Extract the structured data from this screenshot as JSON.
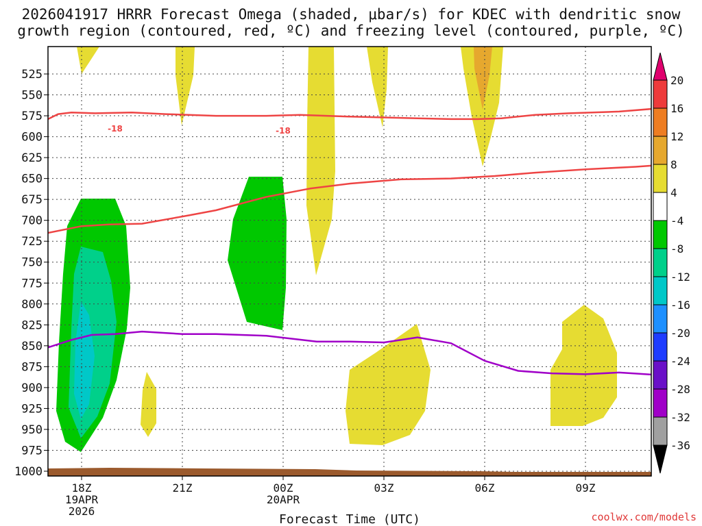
{
  "chart_data": {
    "type": "heatmap",
    "title_line1": "2026041917 HRRR Forecast Omega (shaded, μbar/s) for KDEC with dendritic snow",
    "title_line2": "growth region (contoured, red, ºC) and freezing level (contoured, purple, ºC)",
    "xlabel": "Forecast Time (UTC)",
    "credit": "coolwx.com/models",
    "x_range_hours": [
      -1,
      17.2
    ],
    "x_ticks": [
      {
        "hour": 0,
        "lines": [
          "18Z",
          "19APR",
          "2026"
        ]
      },
      {
        "hour": 3,
        "lines": [
          "21Z"
        ]
      },
      {
        "hour": 6,
        "lines": [
          "00Z",
          "20APR"
        ]
      },
      {
        "hour": 9,
        "lines": [
          "03Z"
        ]
      },
      {
        "hour": 12,
        "lines": [
          "06Z"
        ]
      },
      {
        "hour": 15,
        "lines": [
          "09Z"
        ]
      }
    ],
    "y_ticks": [
      525,
      550,
      575,
      600,
      625,
      650,
      675,
      700,
      725,
      750,
      775,
      800,
      825,
      850,
      875,
      900,
      925,
      950,
      975,
      1000
    ],
    "y_range_hpa": [
      500,
      1005
    ],
    "colorbar": {
      "labels": [
        "20",
        "16",
        "12",
        "8",
        "4",
        "-4",
        "-8",
        "-12",
        "-16",
        "-20",
        "-24",
        "-28",
        "-32",
        "-36"
      ],
      "colors": [
        "#e0006e",
        "#ee3b3b",
        "#ee7d22",
        "#e6a82e",
        "#e6dc32",
        "#ffffff",
        "#00c800",
        "#00d08a",
        "#00c8c8",
        "#1e90ff",
        "#1e3cff",
        "#6a10c8",
        "#a000c8",
        "#a0a0a0",
        "#000000"
      ]
    },
    "contour_label": "-18",
    "series": [
      {
        "name": "dendritic -18C (upper)",
        "color": "#ee4444",
        "hours": [
          -1,
          -0.7,
          -0.3,
          0.4,
          1.5,
          2.5,
          4,
          5.5,
          6.5,
          8,
          9,
          10,
          11,
          11.8,
          12.5,
          13.5,
          14.5,
          16,
          17.2
        ],
        "values": [
          579,
          573,
          571,
          572,
          571,
          573,
          575,
          575,
          574,
          576,
          577,
          578,
          579,
          579,
          578,
          574,
          572,
          570,
          566
        ]
      },
      {
        "name": "dendritic -12C (lower)",
        "color": "#ee4444",
        "hours": [
          -1,
          0,
          0.8,
          1.8,
          3.2,
          4,
          5.5,
          6.8,
          8,
          9.5,
          11,
          12.3,
          13.5,
          15,
          16.5,
          17.2
        ],
        "values": [
          715,
          707,
          705,
          704,
          694,
          688,
          672,
          662,
          656,
          651,
          650,
          647,
          643,
          639,
          636,
          634
        ]
      },
      {
        "name": "freezing level 0C",
        "color": "#a000c8",
        "hours": [
          -1,
          -0.3,
          0.3,
          1,
          1.8,
          3,
          4,
          5.5,
          7,
          8,
          9,
          10,
          11,
          12,
          13,
          14,
          15,
          16,
          17.2
        ],
        "values": [
          852,
          843,
          837,
          836,
          833,
          836,
          836,
          838,
          845,
          845,
          846,
          840,
          847,
          868,
          880,
          883,
          884,
          882,
          885
        ]
      }
    ]
  }
}
